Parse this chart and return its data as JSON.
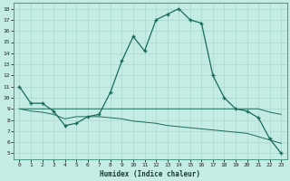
{
  "xlabel": "Humidex (Indice chaleur)",
  "background_color": "#c5ece4",
  "grid_color": "#a8d8ce",
  "line_color": "#1a6b5a",
  "xlim": [
    -0.5,
    23.5
  ],
  "ylim": [
    4.5,
    18.5
  ],
  "yticks": [
    5,
    6,
    7,
    8,
    9,
    10,
    11,
    12,
    13,
    14,
    15,
    16,
    17,
    18
  ],
  "xticks": [
    0,
    1,
    2,
    3,
    4,
    5,
    6,
    7,
    8,
    9,
    10,
    11,
    12,
    13,
    14,
    15,
    16,
    17,
    18,
    19,
    20,
    21,
    22,
    23
  ],
  "line1_x": [
    0,
    1,
    2,
    3,
    4,
    5,
    6,
    7,
    8,
    9,
    10,
    11,
    12,
    13,
    14,
    15,
    16,
    17,
    18,
    19,
    20,
    21,
    22,
    23
  ],
  "line1_y": [
    11,
    9.5,
    9.5,
    8.8,
    7.5,
    7.7,
    8.3,
    8.5,
    10.5,
    13.3,
    15.5,
    14.2,
    17.0,
    17.5,
    18.0,
    17.0,
    16.7,
    12.0,
    10.0,
    9.0,
    8.8,
    8.2,
    6.3,
    5.0
  ],
  "line2_x": [
    0,
    1,
    2,
    3,
    4,
    5,
    6,
    7,
    8,
    9,
    10,
    11,
    12,
    13,
    14,
    15,
    16,
    17,
    18,
    19,
    20,
    21,
    22,
    23
  ],
  "line2_y": [
    9.0,
    9.0,
    9.0,
    9.0,
    9.0,
    9.0,
    9.0,
    9.0,
    9.0,
    9.0,
    9.0,
    9.0,
    9.0,
    9.0,
    9.0,
    9.0,
    9.0,
    9.0,
    9.0,
    9.0,
    9.0,
    9.0,
    8.7,
    8.5
  ],
  "line3_x": [
    0,
    1,
    2,
    3,
    4,
    5,
    6,
    7,
    8,
    9,
    10,
    11,
    12,
    13,
    14,
    15,
    16,
    17,
    18,
    19,
    20,
    21,
    22,
    23
  ],
  "line3_y": [
    9.0,
    8.8,
    8.7,
    8.5,
    8.1,
    8.3,
    8.3,
    8.3,
    8.2,
    8.1,
    7.9,
    7.8,
    7.7,
    7.5,
    7.4,
    7.3,
    7.2,
    7.1,
    7.0,
    6.9,
    6.8,
    6.5,
    6.2,
    5.9
  ]
}
